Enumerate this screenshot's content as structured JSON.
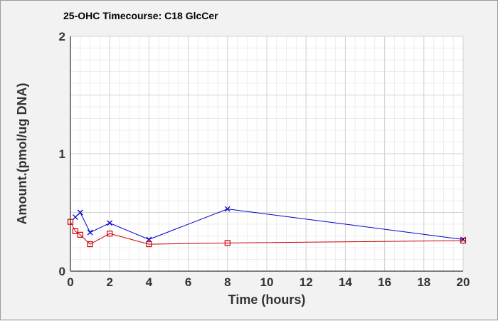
{
  "chart_data": {
    "type": "line",
    "title": "25-OHC Timecourse: C18 GlcCer",
    "xlabel": "Time (hours)",
    "ylabel": "Amount.(pmol/ug DNA)",
    "xlim": [
      0,
      20
    ],
    "ylim": [
      0,
      2
    ],
    "x_ticks": [
      0,
      2,
      4,
      6,
      8,
      10,
      12,
      14,
      16,
      18,
      20
    ],
    "y_ticks": [
      0,
      1,
      2
    ],
    "grid": true,
    "legend": "none",
    "series": [
      {
        "color": "#0000cc",
        "marker": "x",
        "x": [
          0.25,
          0.5,
          1,
          2,
          4,
          8,
          20
        ],
        "y": [
          0.46,
          0.5,
          0.33,
          0.41,
          0.27,
          0.53,
          0.27
        ]
      },
      {
        "color": "#cc0000",
        "marker": "square",
        "x": [
          0,
          0.25,
          0.5,
          1,
          2,
          4,
          8,
          20
        ],
        "y": [
          0.42,
          0.34,
          0.31,
          0.23,
          0.32,
          0.23,
          0.24,
          0.26
        ]
      }
    ]
  }
}
